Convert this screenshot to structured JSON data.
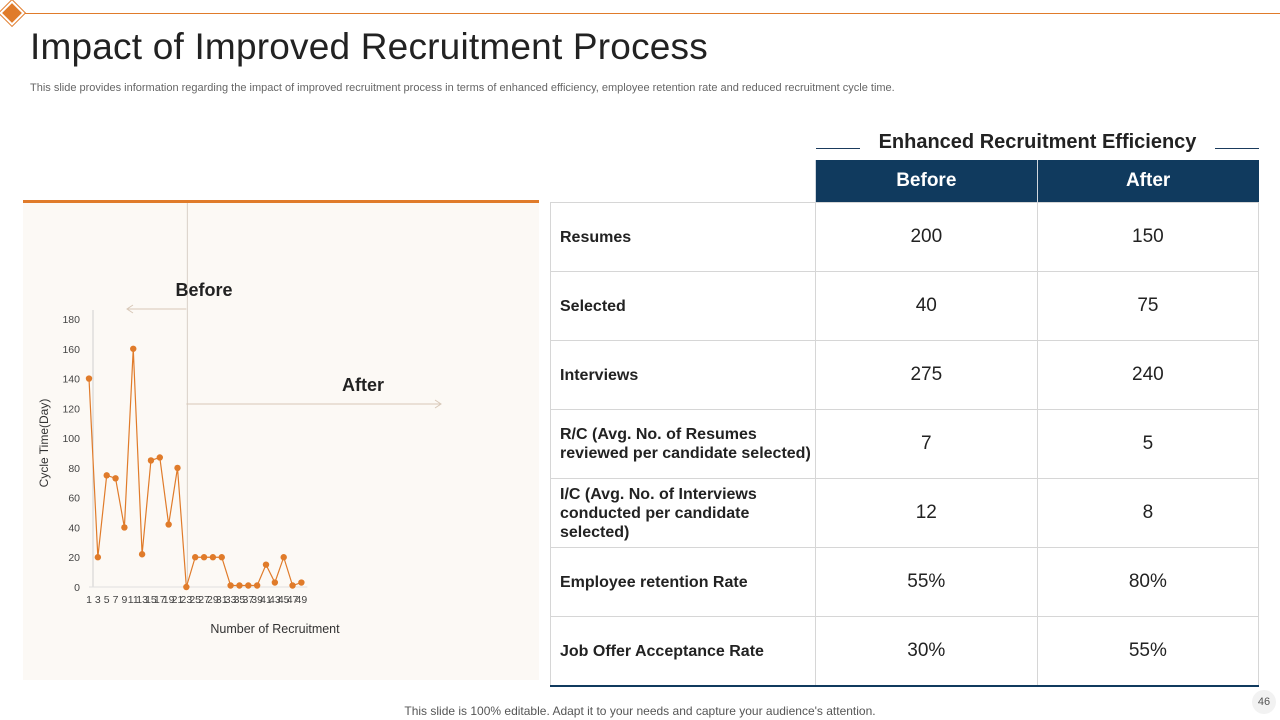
{
  "slide": {
    "title": "Impact of Improved Recruitment Process",
    "subtitle": "This slide provides information regarding the impact of improved recruitment process in terms of enhanced efficiency, employee retention rate and reduced recruitment cycle time.",
    "footer": "This slide is 100% editable. Adapt it to your needs and capture your audience's attention.",
    "page_number": "46",
    "accent_color": "#e07b2a",
    "navy_color": "#103a5e"
  },
  "chart_data": {
    "type": "line",
    "title": "",
    "xlabel": "Number of Recruitment",
    "ylabel": "Cycle Time(Day)",
    "ylim": [
      0,
      180
    ],
    "yticks": [
      0,
      20,
      40,
      60,
      80,
      100,
      120,
      140,
      160,
      180
    ],
    "x": [
      1,
      3,
      5,
      7,
      9,
      11,
      13,
      15,
      17,
      19,
      21,
      23,
      25,
      27,
      29,
      31,
      33,
      35,
      37,
      39,
      41,
      43,
      45,
      47,
      49
    ],
    "values": [
      140,
      20,
      75,
      73,
      40,
      160,
      22,
      85,
      87,
      42,
      80,
      0,
      20,
      20,
      20,
      20,
      1,
      1,
      1,
      1,
      15,
      3,
      20,
      1,
      3
    ],
    "series_color": "#e07b2a",
    "annotations": {
      "before_label": "Before",
      "after_label": "After",
      "divider_x": 23
    }
  },
  "efficiency_table": {
    "heading": "Enhanced Recruitment Efficiency",
    "columns": [
      "Before",
      "After"
    ],
    "rows": [
      {
        "metric": "Resumes",
        "before": "200",
        "after": "150"
      },
      {
        "metric": "Selected",
        "before": "40",
        "after": "75"
      },
      {
        "metric": "Interviews",
        "before": "275",
        "after": "240"
      },
      {
        "metric": "R/C (Avg. No. of Resumes reviewed per candidate selected)",
        "before": "7",
        "after": "5"
      },
      {
        "metric": "I/C (Avg. No. of Interviews conducted per candidate selected)",
        "before": "12",
        "after": "8"
      },
      {
        "metric": "Employee retention Rate",
        "before": "55%",
        "after": "80%"
      },
      {
        "metric": "Job Offer Acceptance Rate",
        "before": "30%",
        "after": "55%"
      }
    ]
  }
}
